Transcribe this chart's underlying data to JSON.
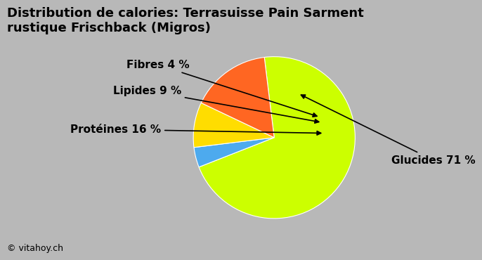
{
  "title": "Distribution de calories: Terrasuisse Pain Sarment\nrustique Frischback (Migros)",
  "slices": [
    71,
    4,
    9,
    16
  ],
  "labels": [
    "Glucides 71 %",
    "Fibres 4 %",
    "Lipides 9 %",
    "Protéines 16 %"
  ],
  "colors": [
    "#ccff00",
    "#4daaee",
    "#ffdd00",
    "#ff6622"
  ],
  "background_color": "#b8b8b8",
  "title_fontsize": 13,
  "label_fontsize": 11,
  "watermark": "© vitahoy.ch",
  "startangle": 97
}
